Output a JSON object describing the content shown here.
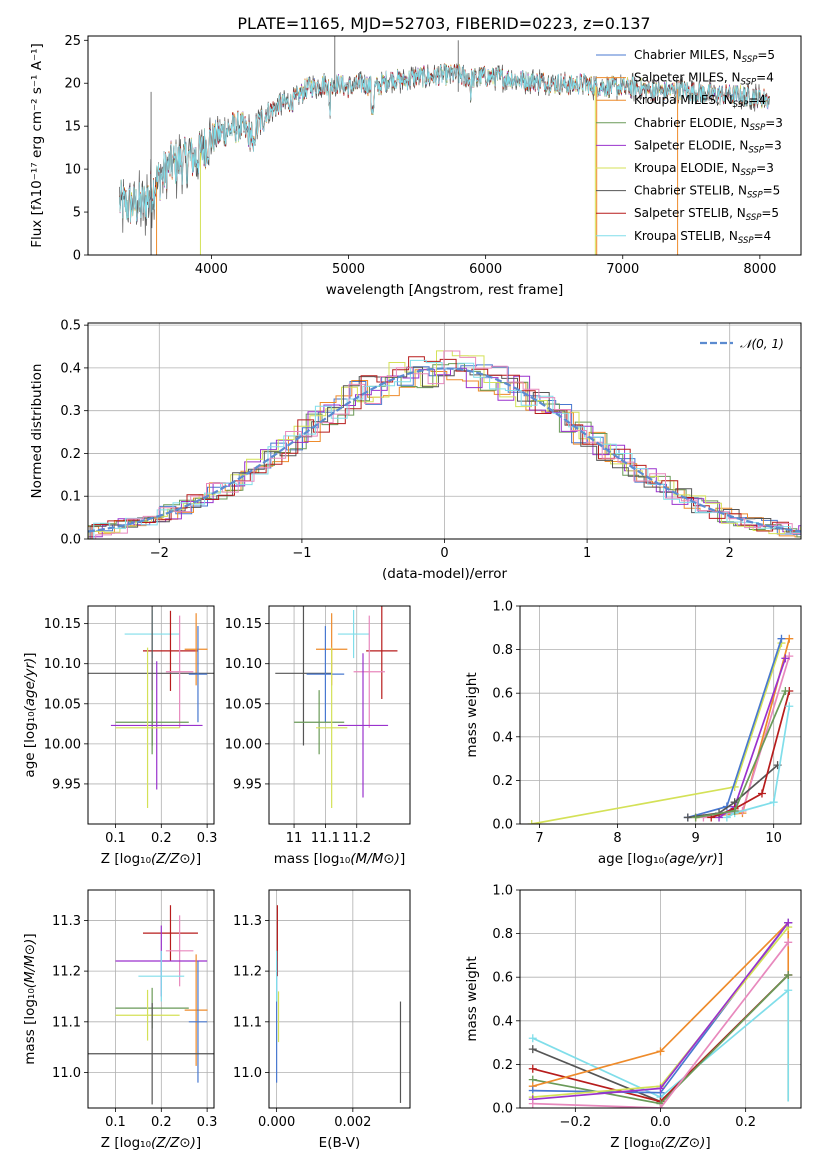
{
  "figure_title": "PLATE=1165, MJD=52703, FIBERID=0223, z=0.137",
  "colors": {
    "blue": "#4878d0",
    "orange": "#ee8b2b",
    "green": "#6a9a58",
    "purple": "#9a32cd",
    "yellow": "#d4e157",
    "dark": "#555555",
    "red": "#b71c1c",
    "cyan": "#80deea",
    "pink": "#e889bd",
    "normal": "#5b8bd0"
  },
  "chart_data": [
    {
      "id": "spectrum",
      "type": "line",
      "xlabel": "wavelength [Angstrom, rest frame]",
      "ylabel": "Flux [fλ10⁻¹⁷ erg cm⁻² s⁻¹ A⁻¹]",
      "xlim": [
        3100,
        8300
      ],
      "ylim": [
        0,
        25.5
      ],
      "xticks": [
        4000,
        5000,
        6000,
        7000,
        8000
      ],
      "yticks": [
        0,
        5,
        10,
        15,
        20,
        25
      ],
      "grid": false,
      "legend_position": "upper right",
      "series": [
        {
          "name": "Chabrier MILES, N_SSP=5",
          "color": "blue",
          "legend": [
            "Chabrier MILES, N",
            "SSP",
            "=5"
          ]
        },
        {
          "name": "Salpeter MILES, N_SSP=4",
          "color": "orange",
          "legend": [
            "Salpeter MILES, N",
            "SSP",
            "=4"
          ]
        },
        {
          "name": "Kroupa MILES, N_SSP=4",
          "color": "orange",
          "legend": [
            "Kroupa MILES, N",
            "SSP",
            "=4"
          ]
        },
        {
          "name": "Chabrier ELODIE, N_SSP=3",
          "color": "green",
          "legend": [
            "Chabrier ELODIE, N",
            "SSP",
            "=3"
          ]
        },
        {
          "name": "Salpeter ELODIE, N_SSP=3",
          "color": "purple",
          "legend": [
            "Salpeter ELODIE, N",
            "SSP",
            "=3"
          ]
        },
        {
          "name": "Kroupa ELODIE, N_SSP=3",
          "color": "yellow",
          "legend": [
            "Kroupa ELODIE, N",
            "SSP",
            "=3"
          ]
        },
        {
          "name": "Chabrier STELIB, N_SSP=5",
          "color": "dark",
          "legend": [
            "Chabrier STELIB, N",
            "SSP",
            "=5"
          ]
        },
        {
          "name": "Salpeter STELIB, N_SSP=5",
          "color": "red",
          "legend": [
            "Salpeter STELIB, N",
            "SSP",
            "=5"
          ]
        },
        {
          "name": "Kroupa STELIB, N_SSP=4",
          "color": "cyan",
          "legend": [
            "Kroupa STELIB, N",
            "SSP",
            "=4"
          ]
        }
      ],
      "continuum": [
        [
          3330,
          6.0
        ],
        [
          3500,
          5.8
        ],
        [
          3600,
          8.5
        ],
        [
          3700,
          10.5
        ],
        [
          3800,
          11.0
        ],
        [
          3900,
          11.5
        ],
        [
          4000,
          13.5
        ],
        [
          4100,
          14.5
        ],
        [
          4200,
          15.0
        ],
        [
          4300,
          14.0
        ],
        [
          4400,
          16.5
        ],
        [
          4500,
          17.5
        ],
        [
          4600,
          18.0
        ],
        [
          4700,
          19.5
        ],
        [
          4800,
          19.8
        ],
        [
          4900,
          20.0
        ],
        [
          5000,
          19.5
        ],
        [
          5100,
          20.0
        ],
        [
          5200,
          19.5
        ],
        [
          5300,
          20.5
        ],
        [
          5400,
          20.3
        ],
        [
          5500,
          20.8
        ],
        [
          5600,
          20.7
        ],
        [
          5700,
          21.0
        ],
        [
          5800,
          21.0
        ],
        [
          5900,
          20.5
        ],
        [
          6000,
          20.8
        ],
        [
          6100,
          20.7
        ],
        [
          6200,
          20.5
        ],
        [
          6300,
          20.3
        ],
        [
          6400,
          20.2
        ],
        [
          6500,
          20.0
        ],
        [
          6600,
          19.8
        ],
        [
          6700,
          20.0
        ],
        [
          6800,
          19.6
        ],
        [
          6900,
          19.6
        ],
        [
          7000,
          19.5
        ],
        [
          7100,
          19.5
        ],
        [
          7200,
          19.2
        ],
        [
          7300,
          19.0
        ],
        [
          7400,
          19.3
        ],
        [
          7600,
          18.8
        ],
        [
          7800,
          18.6
        ],
        [
          8000,
          18.4
        ],
        [
          8070,
          18.0
        ]
      ],
      "dropouts": [
        {
          "x": 3560,
          "color": "dark"
        },
        {
          "x": 3600,
          "color": "orange"
        },
        {
          "x": 3920,
          "color": "yellow"
        },
        {
          "x": 6800,
          "color": "yellow"
        },
        {
          "x": 6810,
          "color": "orange"
        },
        {
          "x": 7400,
          "color": "orange"
        }
      ]
    },
    {
      "id": "residuals",
      "type": "histogram",
      "xlabel": "(data-model)/error",
      "ylabel": "Normed distribution",
      "xlim": [
        -2.5,
        2.5
      ],
      "ylim": [
        0,
        0.505
      ],
      "xticks": [
        -2,
        -1,
        0,
        1,
        2
      ],
      "yticks": [
        0.0,
        0.1,
        0.2,
        0.3,
        0.4,
        0.5
      ],
      "grid": true,
      "bin_width": 0.111,
      "legend": {
        "label": "𝒩(0, 1)",
        "color": "normal",
        "position": "upper right"
      },
      "series_colors": [
        "blue",
        "orange",
        "green",
        "purple",
        "yellow",
        "dark",
        "red",
        "cyan",
        "pink"
      ]
    },
    {
      "id": "age_vs_Z",
      "type": "errorbar",
      "xlabel": "Z [log₁₀(Z/Z⊙)]",
      "ylabel": "age  [log₁₀(age/yr)]",
      "xlim": [
        0.04,
        0.315
      ],
      "ylim": [
        9.9,
        10.172
      ],
      "xticks": [
        0.1,
        0.2,
        0.3
      ],
      "yticks": [
        9.95,
        10.0,
        10.05,
        10.1,
        10.15
      ],
      "grid": true,
      "points": [
        {
          "color": "cyan",
          "x": 0.18,
          "xerr": 0.06,
          "y": 10.137,
          "yerr": 0.03
        },
        {
          "color": "red",
          "x": 0.22,
          "xerr": 0.06,
          "y": 10.116,
          "yerr": 0.05
        },
        {
          "color": "orange",
          "x": 0.276,
          "xerr": 0.025,
          "y": 10.118,
          "yerr": 0.045
        },
        {
          "color": "dark",
          "x": 0.18,
          "xerr": 0.14,
          "y": 10.088,
          "yerr": 0.09
        },
        {
          "color": "blue",
          "x": 0.28,
          "xerr": 0.02,
          "y": 10.087,
          "yerr": 0.06
        },
        {
          "color": "pink",
          "x": 0.24,
          "xerr": 0.03,
          "y": 10.09,
          "yerr": 0.07
        },
        {
          "color": "green",
          "x": 0.18,
          "xerr": 0.08,
          "y": 10.027,
          "yerr": 0.04
        },
        {
          "color": "purple",
          "x": 0.19,
          "xerr": 0.1,
          "y": 10.023,
          "yerr": 0.08
        },
        {
          "color": "yellow",
          "x": 0.17,
          "xerr": 0.07,
          "y": 10.02,
          "yerr": 0.1
        }
      ]
    },
    {
      "id": "age_vs_mass",
      "type": "errorbar",
      "xlabel": "mass [log₁₀(M/M⊙)]",
      "ylabel": "",
      "xlim": [
        10.92,
        11.37
      ],
      "ylim": [
        9.9,
        10.172
      ],
      "xticks": [
        11.0,
        11.1,
        11.2
      ],
      "yticks": [
        9.95,
        10.0,
        10.05,
        10.1,
        10.15
      ],
      "grid": true,
      "points": [
        {
          "color": "cyan",
          "x": 11.19,
          "xerr": 0.05,
          "y": 10.137,
          "yerr": 0.03
        },
        {
          "color": "red",
          "x": 11.28,
          "xerr": 0.05,
          "y": 10.116,
          "yerr": 0.06
        },
        {
          "color": "orange",
          "x": 11.12,
          "xerr": 0.05,
          "y": 10.118,
          "yerr": 0.045
        },
        {
          "color": "dark",
          "x": 11.03,
          "xerr": 0.09,
          "y": 10.088,
          "yerr": 0.09
        },
        {
          "color": "blue",
          "x": 11.1,
          "xerr": 0.06,
          "y": 10.087,
          "yerr": 0.06
        },
        {
          "color": "pink",
          "x": 11.24,
          "xerr": 0.05,
          "y": 10.09,
          "yerr": 0.07
        },
        {
          "color": "green",
          "x": 11.08,
          "xerr": 0.08,
          "y": 10.027,
          "yerr": 0.04
        },
        {
          "color": "purple",
          "x": 11.22,
          "xerr": 0.08,
          "y": 10.023,
          "yerr": 0.09
        },
        {
          "color": "yellow",
          "x": 11.12,
          "xerr": 0.05,
          "y": 10.02,
          "yerr": 0.1
        }
      ]
    },
    {
      "id": "weight_vs_age",
      "type": "line",
      "xlabel": "age  [log₁₀(age/yr)]",
      "ylabel": "mass weight",
      "xlim": [
        6.75,
        10.35
      ],
      "ylim": [
        0,
        1
      ],
      "xticks": [
        7,
        8,
        9,
        10
      ],
      "yticks": [
        0.0,
        0.2,
        0.4,
        0.6,
        0.8,
        1.0
      ],
      "grid": true,
      "series": [
        {
          "color": "yellow",
          "x": [
            6.9,
            9.5,
            10.1
          ],
          "y": [
            0.0,
            0.17,
            0.83
          ]
        },
        {
          "color": "blue",
          "x": [
            8.9,
            9.4,
            10.1
          ],
          "y": [
            0.03,
            0.08,
            0.85
          ]
        },
        {
          "color": "orange",
          "x": [
            9.0,
            9.6,
            10.2
          ],
          "y": [
            0.03,
            0.05,
            0.85
          ]
        },
        {
          "color": "pink",
          "x": [
            9.1,
            9.6,
            10.2
          ],
          "y": [
            0.03,
            0.06,
            0.77
          ]
        },
        {
          "color": "purple",
          "x": [
            9.3,
            9.5,
            10.15
          ],
          "y": [
            0.03,
            0.08,
            0.76
          ]
        },
        {
          "color": "dark",
          "x": [
            8.9,
            9.3,
            9.5,
            10.05
          ],
          "y": [
            0.03,
            0.05,
            0.1,
            0.27
          ]
        },
        {
          "color": "red",
          "x": [
            9.2,
            9.5,
            9.85,
            10.2
          ],
          "y": [
            0.03,
            0.07,
            0.14,
            0.61
          ]
        },
        {
          "color": "cyan",
          "x": [
            9.4,
            9.5,
            10.0,
            10.2
          ],
          "y": [
            0.03,
            0.05,
            0.1,
            0.54
          ]
        },
        {
          "color": "green",
          "x": [
            9.0,
            9.5,
            10.15
          ],
          "y": [
            0.03,
            0.06,
            0.61
          ]
        }
      ]
    },
    {
      "id": "mass_vs_Z",
      "type": "errorbar",
      "xlabel": "Z [log₁₀(Z/Z⊙)]",
      "ylabel": "mass [log₁₀(M/M⊙)]",
      "xlim": [
        0.04,
        0.315
      ],
      "ylim": [
        10.93,
        11.36
      ],
      "xticks": [
        0.1,
        0.2,
        0.3
      ],
      "yticks": [
        11.0,
        11.1,
        11.2,
        11.3
      ],
      "grid": true,
      "points": [
        {
          "color": "red",
          "x": 0.22,
          "xerr": 0.06,
          "y": 11.275,
          "yerr": 0.055
        },
        {
          "color": "pink",
          "x": 0.24,
          "xerr": 0.03,
          "y": 11.24,
          "yerr": 0.07
        },
        {
          "color": "purple",
          "x": 0.2,
          "xerr": 0.1,
          "y": 11.22,
          "yerr": 0.07
        },
        {
          "color": "cyan",
          "x": 0.2,
          "xerr": 0.05,
          "y": 11.19,
          "yerr": 0.05
        },
        {
          "color": "green",
          "x": 0.18,
          "xerr": 0.08,
          "y": 11.127,
          "yerr": 0.04
        },
        {
          "color": "orange",
          "x": 0.276,
          "xerr": 0.025,
          "y": 11.123,
          "yerr": 0.11
        },
        {
          "color": "yellow",
          "x": 0.17,
          "xerr": 0.07,
          "y": 11.113,
          "yerr": 0.05
        },
        {
          "color": "blue",
          "x": 0.28,
          "xerr": 0.02,
          "y": 11.1,
          "yerr": 0.12
        },
        {
          "color": "dark",
          "x": 0.18,
          "xerr": 0.14,
          "y": 11.037,
          "yerr": 0.1
        }
      ]
    },
    {
      "id": "mass_vs_ebv",
      "type": "errorbar",
      "xlabel": "E(B-V)",
      "ylabel": "",
      "xlim": [
        -0.0002,
        0.0035
      ],
      "ylim": [
        10.93,
        11.36
      ],
      "xticks": [
        0.0,
        0.002
      ],
      "xticklabels": [
        "0.000",
        "0.002"
      ],
      "yticks": [
        11.0,
        11.1,
        11.2,
        11.3
      ],
      "grid": true,
      "points": [
        {
          "color": "red",
          "x": 2e-05,
          "xerr": 0,
          "y": 11.26,
          "yerr": 0.07
        },
        {
          "color": "blue",
          "x": 0.0,
          "xerr": 0,
          "y": 11.1,
          "yerr": 0.12
        },
        {
          "color": "cyan",
          "x": 0.0,
          "xerr": 0,
          "y": 11.19,
          "yerr": 0.05
        },
        {
          "color": "yellow",
          "x": 5e-05,
          "xerr": 0,
          "y": 11.11,
          "yerr": 0.05
        },
        {
          "color": "dark",
          "x": 0.00325,
          "xerr": 0,
          "y": 11.04,
          "yerr": 0.1
        }
      ]
    },
    {
      "id": "weight_vs_Z",
      "type": "line",
      "xlabel": "Z [log₁₀(Z/Z⊙)]",
      "ylabel": "mass weight",
      "xlim": [
        -0.33,
        0.33
      ],
      "ylim": [
        0,
        1
      ],
      "xticks": [
        -0.2,
        0.0,
        0.2
      ],
      "xticklabels": [
        "−0.2",
        "0.0",
        "0.2"
      ],
      "yticks": [
        0.0,
        0.2,
        0.4,
        0.6,
        0.8,
        1.0
      ],
      "grid": true,
      "series": [
        {
          "color": "cyan",
          "x": [
            -0.3,
            0.0,
            0.3
          ],
          "y": [
            0.32,
            0.05,
            0.54
          ]
        },
        {
          "color": "dark",
          "x": [
            -0.3,
            0.0,
            0.3
          ],
          "y": [
            0.27,
            0.03,
            0.61
          ]
        },
        {
          "color": "red",
          "x": [
            -0.3,
            0.0,
            0.3
          ],
          "y": [
            0.18,
            0.03,
            0.61
          ]
        },
        {
          "color": "green",
          "x": [
            -0.3,
            0.0,
            0.3
          ],
          "y": [
            0.13,
            0.02,
            0.61
          ]
        },
        {
          "color": "orange",
          "x": [
            -0.3,
            0.0,
            0.3
          ],
          "y": [
            0.1,
            0.26,
            0.85
          ]
        },
        {
          "color": "blue",
          "x": [
            -0.3,
            0.0,
            0.3
          ],
          "y": [
            0.08,
            0.07,
            0.85
          ]
        },
        {
          "color": "yellow",
          "x": [
            -0.3,
            0.0,
            0.3
          ],
          "y": [
            0.05,
            0.1,
            0.83
          ]
        },
        {
          "color": "purple",
          "x": [
            -0.3,
            0.0,
            0.3
          ],
          "y": [
            0.04,
            0.09,
            0.85
          ]
        },
        {
          "color": "pink",
          "x": [
            -0.3,
            0.0,
            0.3
          ],
          "y": [
            0.02,
            0.0,
            0.76
          ]
        }
      ],
      "verticals": [
        {
          "x": 0.3,
          "y0": 0.03,
          "y1": 0.85,
          "color": "orange"
        },
        {
          "x": 0.3,
          "y0": 0.03,
          "y1": 0.6,
          "color": "cyan"
        }
      ]
    }
  ]
}
